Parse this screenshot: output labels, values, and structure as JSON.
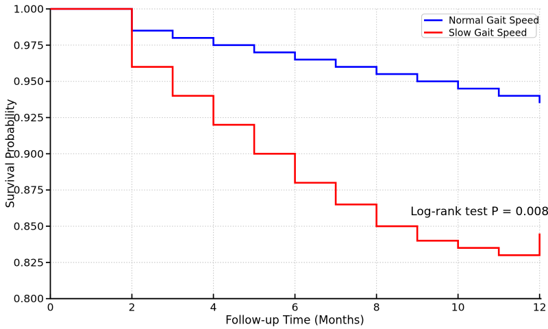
{
  "figure": {
    "background": "#ffffff",
    "axis_color": "#000000",
    "grid_color": "#c6c6c6"
  },
  "chart_data": {
    "type": "line",
    "subtype": "kaplan-meier-step-survival",
    "title": "",
    "xlabel": "Follow-up Time (Months)",
    "ylabel": "Survival Probability",
    "xlim": [
      0,
      12
    ],
    "ylim": [
      0.8,
      1.0
    ],
    "x_ticks": [
      0,
      2,
      4,
      6,
      8,
      10,
      12
    ],
    "y_ticks": [
      "1.000",
      "0.975",
      "0.950",
      "0.925",
      "0.900",
      "0.875",
      "0.850",
      "0.825",
      "0.800"
    ],
    "grid": "dotted, gray, at every x tick (except 0) and every y tick (except 0.800)",
    "legend_position": "upper right",
    "step": "post",
    "series": [
      {
        "name": "Normal Gait Speed",
        "color": "#0000ff",
        "x": [
          0,
          2,
          3,
          4,
          5,
          6,
          7,
          8,
          9,
          10,
          11,
          12
        ],
        "y": [
          1.0,
          0.985,
          0.98,
          0.975,
          0.97,
          0.965,
          0.96,
          0.955,
          0.95,
          0.945,
          0.94,
          0.935
        ]
      },
      {
        "name": "Slow Gait Speed",
        "color": "#ff0000",
        "x": [
          0,
          2,
          3,
          4,
          5,
          6,
          7,
          8,
          9,
          10,
          11,
          12
        ],
        "y": [
          1.0,
          0.96,
          0.94,
          0.92,
          0.9,
          0.88,
          0.865,
          0.85,
          0.84,
          0.835,
          0.83,
          0.845
        ]
      }
    ],
    "annotation": {
      "text": "Log-rank test P = 0.008",
      "x": 10.53,
      "y": 0.8605
    },
    "legend": {
      "items": [
        {
          "label": "Normal Gait Speed",
          "color": "#0000ff"
        },
        {
          "label": "Slow Gait Speed",
          "color": "#ff0000"
        }
      ]
    }
  }
}
